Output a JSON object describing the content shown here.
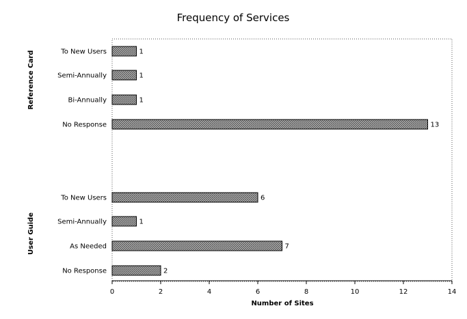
{
  "chart_data": {
    "type": "bar",
    "orientation": "horizontal",
    "title": "Frequency of Services",
    "xlabel": "Number of Sites",
    "xlim": [
      0,
      14
    ],
    "xticks": [
      0,
      2,
      4,
      6,
      8,
      10,
      12,
      14
    ],
    "grid": false,
    "frame": "dotted",
    "bar_color": "#8c8c8c",
    "groups": [
      {
        "name": "Reference Card",
        "categories": [
          "To New Users",
          "Semi-Annually",
          "Bi-Annually",
          "No Response"
        ],
        "values": [
          1,
          1,
          1,
          13
        ]
      },
      {
        "name": "User Guide",
        "categories": [
          "To New Users",
          "Semi-Annually",
          "As Needed",
          "No Response"
        ],
        "values": [
          6,
          1,
          7,
          2
        ]
      }
    ]
  }
}
